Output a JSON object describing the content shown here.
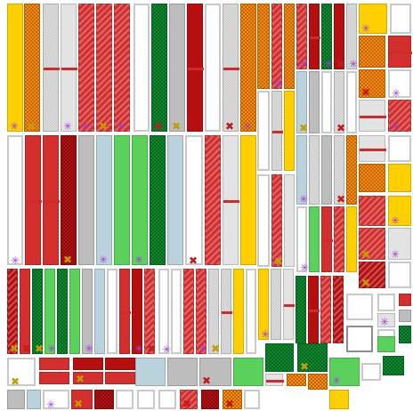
{
  "palette": {
    "yellow": "#ffcf00",
    "orange": "#ff8c00",
    "red": "#d32f2f",
    "darkred": "#b50f0f",
    "green": "#0a8a2f",
    "lightgreen": "#5ad15a",
    "lightblue": "#b9d2dc",
    "gray": "#bdbdbd",
    "lightgray": "#e3e3e3",
    "white": "#ffffff",
    "divider": "#d02a2a"
  },
  "icons": {
    "star": "star-burst-icon",
    "cross": "cross-mark-icon"
  }
}
